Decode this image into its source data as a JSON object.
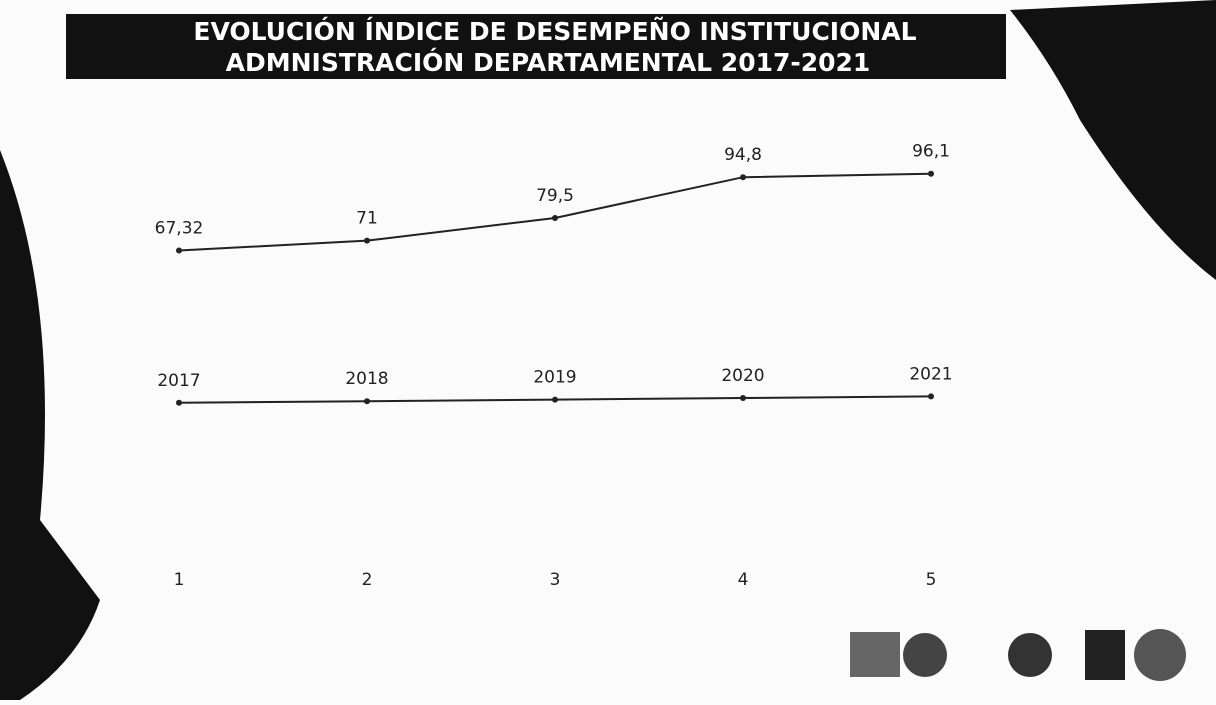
{
  "chart_data": {
    "type": "line",
    "title": [
      "EVOLUCIÓN  ÍNDICE DE  DESEMPEÑO INSTITUCIONAL",
      "ADMNISTRACIÓN DEPARTAMENTAL 2017-2021"
    ],
    "categories": [
      "1",
      "2",
      "3",
      "4",
      "5"
    ],
    "series": [
      {
        "name": null,
        "color": "#222222",
        "values": [
          67.32,
          71,
          79.5,
          94.8,
          96.1
        ],
        "value_labels": [
          "67,32",
          "71",
          "79,5",
          "94,8",
          "96,1"
        ]
      },
      {
        "name": null,
        "color": "#222222",
        "axis": "y2",
        "values": [
          2017,
          2018,
          2019,
          2020,
          2021
        ]
      }
    ],
    "ylim": [
      -60,
      120
    ],
    "y2lim": [
      1900,
      2200
    ]
  }
}
